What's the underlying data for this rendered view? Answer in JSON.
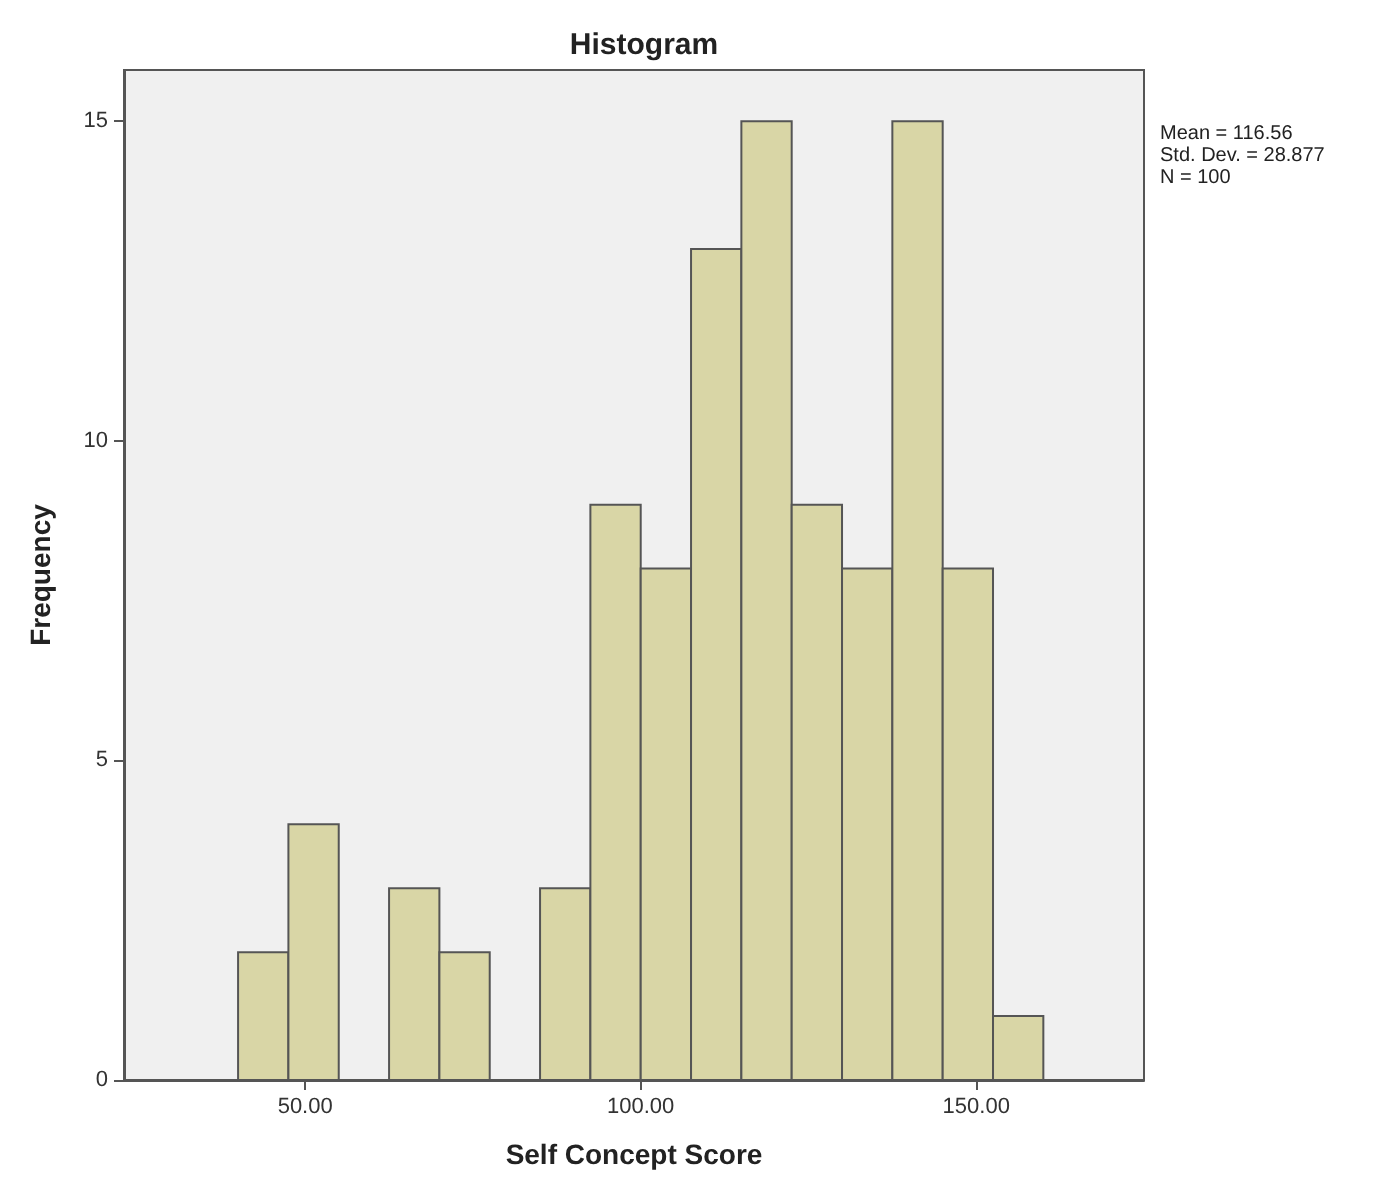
{
  "chart_data": {
    "type": "histogram",
    "title": "Histogram",
    "xlabel": "Self Concept Score",
    "ylabel": "Frequency",
    "bins": [
      40,
      47.5,
      55,
      62.5,
      70,
      77.5,
      85,
      92.5,
      100,
      107.5,
      115,
      122.5,
      130,
      137.5,
      145,
      152.5,
      160
    ],
    "values": [
      2,
      4,
      0,
      3,
      2,
      0,
      3,
      9,
      8,
      13,
      15,
      9,
      8,
      15,
      8,
      1
    ],
    "color": "#d9d6a6",
    "xlim": [
      23,
      175
    ],
    "ylim": [
      0,
      15.8
    ],
    "xticks": [
      {
        "value": 50,
        "label": "50.00"
      },
      {
        "value": 100,
        "label": "100.00"
      },
      {
        "value": 150,
        "label": "150.00"
      }
    ],
    "yticks": [
      0,
      5,
      10,
      15
    ],
    "grid": false,
    "annotations": [
      "Mean = 116.56",
      "Std. Dev. = 28.877",
      "N = 100"
    ]
  }
}
